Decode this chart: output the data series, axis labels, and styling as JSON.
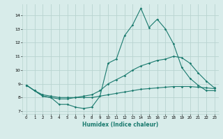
{
  "xlabel": "Humidex (Indice chaleur)",
  "xlim": [
    -0.5,
    23.5
  ],
  "ylim": [
    6.8,
    14.8
  ],
  "yticks": [
    7,
    8,
    9,
    10,
    11,
    12,
    13,
    14
  ],
  "xticks": [
    0,
    1,
    2,
    3,
    4,
    5,
    6,
    7,
    8,
    9,
    10,
    11,
    12,
    13,
    14,
    15,
    16,
    17,
    18,
    19,
    20,
    21,
    22,
    23
  ],
  "bg_color": "#d8ecea",
  "grid_color": "#b8d4d0",
  "line_color": "#1a7a6e",
  "line1_x": [
    0,
    1,
    2,
    3,
    4,
    5,
    6,
    7,
    8,
    9,
    10,
    11,
    12,
    13,
    14,
    15,
    16,
    17,
    18,
    19,
    20,
    21,
    22,
    23
  ],
  "line1_y": [
    8.9,
    8.5,
    8.1,
    8.0,
    7.5,
    7.5,
    7.3,
    7.2,
    7.3,
    8.1,
    10.5,
    10.8,
    12.5,
    13.3,
    14.5,
    13.1,
    13.7,
    13.0,
    11.9,
    10.2,
    9.4,
    8.9,
    8.5,
    8.5
  ],
  "line2_x": [
    0,
    1,
    2,
    3,
    4,
    5,
    6,
    7,
    8,
    9,
    10,
    11,
    12,
    13,
    14,
    15,
    16,
    17,
    18,
    19,
    20,
    21,
    22,
    23
  ],
  "line2_y": [
    8.9,
    8.5,
    8.1,
    8.0,
    7.9,
    7.9,
    8.0,
    8.1,
    8.2,
    8.5,
    9.0,
    9.3,
    9.6,
    10.0,
    10.3,
    10.5,
    10.7,
    10.8,
    11.0,
    10.9,
    10.5,
    9.8,
    9.2,
    8.7
  ],
  "line3_x": [
    0,
    1,
    2,
    3,
    4,
    5,
    6,
    7,
    8,
    9,
    10,
    11,
    12,
    13,
    14,
    15,
    16,
    17,
    18,
    19,
    20,
    21,
    22,
    23
  ],
  "line3_y": [
    8.9,
    8.5,
    8.2,
    8.1,
    8.0,
    8.0,
    8.0,
    8.0,
    8.0,
    8.1,
    8.2,
    8.3,
    8.4,
    8.5,
    8.6,
    8.65,
    8.7,
    8.75,
    8.8,
    8.8,
    8.8,
    8.75,
    8.7,
    8.65
  ]
}
